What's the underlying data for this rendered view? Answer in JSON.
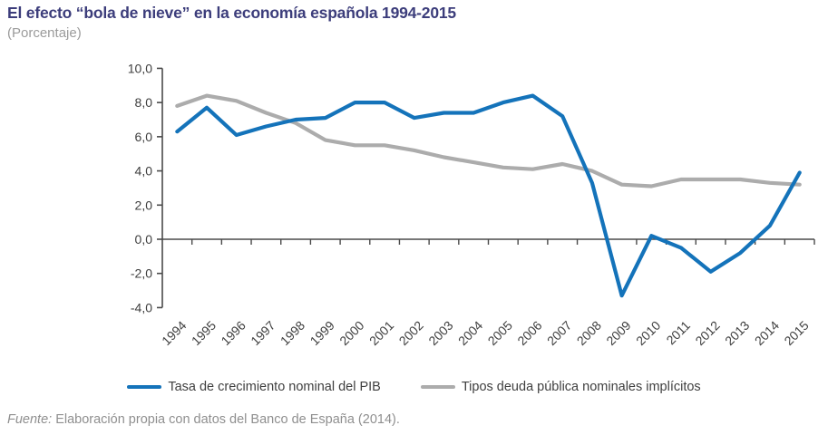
{
  "header": {
    "title": "El efecto “bola de nieve” en la economía española 1994-2015",
    "subtitle": "(Porcentaje)"
  },
  "chart_data": {
    "type": "line",
    "title": "El efecto “bola de nieve” en la economía española 1994-2015",
    "subtitle": "(Porcentaje)",
    "categories": [
      "1994",
      "1995",
      "1996",
      "1997",
      "1998",
      "1999",
      "2000",
      "2001",
      "2002",
      "2003",
      "2004",
      "2005",
      "2006",
      "2007",
      "2008",
      "2009",
      "2010",
      "2011",
      "2012",
      "2013",
      "2014",
      "2015"
    ],
    "series": [
      {
        "name": "Tasa de crecimiento nominal del PIB",
        "color": "#1473BA",
        "values": [
          6.3,
          7.7,
          6.1,
          6.6,
          7.0,
          7.1,
          8.0,
          8.0,
          7.1,
          7.4,
          7.4,
          8.0,
          8.4,
          7.2,
          3.3,
          -3.3,
          0.2,
          -0.5,
          -1.9,
          -0.8,
          0.8,
          3.9
        ]
      },
      {
        "name": "Tipos deuda pública nominales implícitos",
        "color": "#ACACAC",
        "values": [
          7.8,
          8.4,
          8.1,
          7.4,
          6.8,
          5.8,
          5.5,
          5.5,
          5.2,
          4.8,
          4.5,
          4.2,
          4.1,
          4.4,
          4.0,
          3.2,
          3.1,
          3.5,
          3.5,
          3.5,
          3.3,
          3.2
        ]
      }
    ],
    "ylim": [
      -4,
      10
    ],
    "ytick_values": [
      10,
      8,
      6,
      4,
      2,
      0,
      -2,
      -4
    ],
    "ytick_labels": [
      "10,0",
      "8,0",
      "6,0",
      "4,0",
      "2,0",
      "0,0",
      "-2,0",
      "-4,0"
    ],
    "grid": false,
    "legend_position": "bottom",
    "axis_color": "#4A4A4A",
    "tick_label_color": "#3F3F3F"
  },
  "footer": {
    "prefix": "Fuente:",
    "text": " Elaboración propia con datos del Banco de España (2014)."
  }
}
